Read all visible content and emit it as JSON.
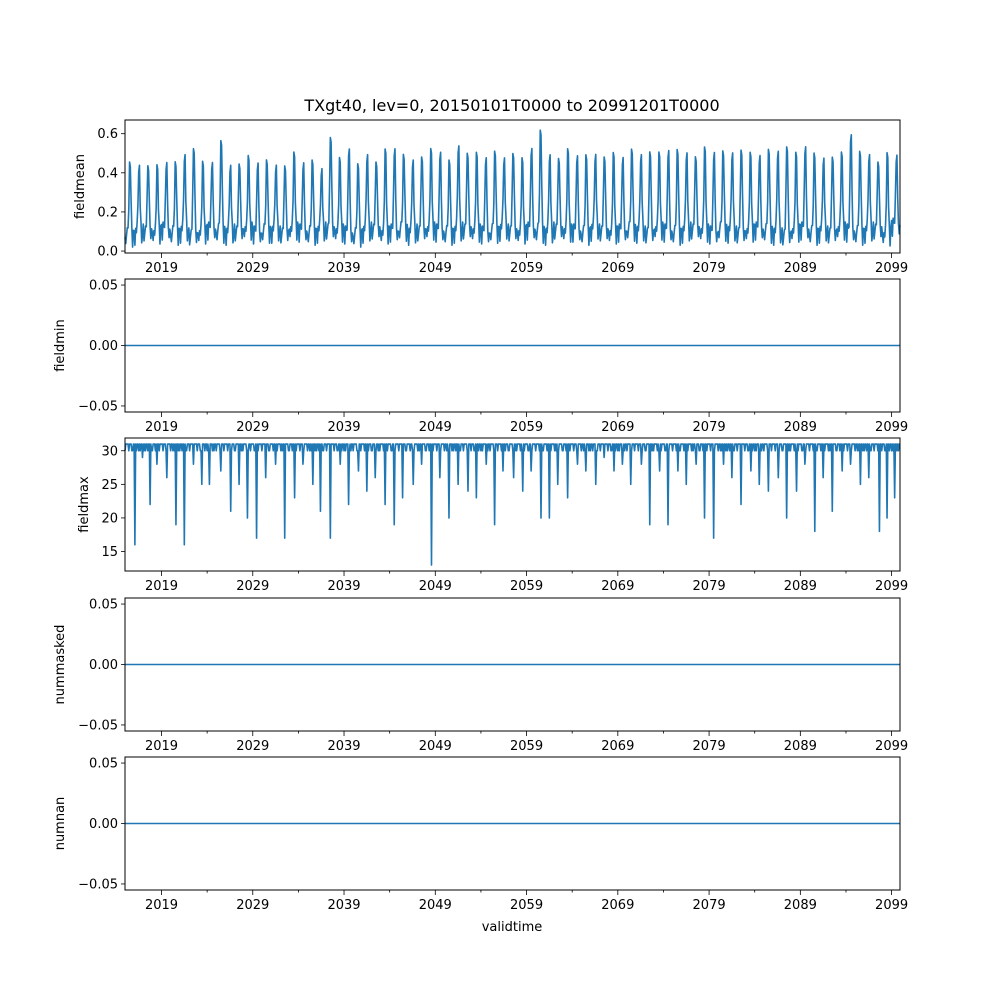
{
  "chart_data": {
    "type": "line",
    "title": "TXgt40, lev=0, 20150101T0000 to 20991201T0000",
    "xlabel": "validtime",
    "series_color": "#1f77b4",
    "x_range": [
      "2015-01-01",
      "2099-12-01"
    ],
    "x_ticks": [
      "2019",
      "2029",
      "2039",
      "2049",
      "2059",
      "2069",
      "2079",
      "2089",
      "2099"
    ],
    "panels": [
      {
        "ylabel": "fieldmean",
        "ylim": [
          -0.01,
          0.67
        ],
        "y_ticks": [
          "0.0",
          "0.2",
          "0.4",
          "0.6"
        ],
        "y_tick_values": [
          0.0,
          0.2,
          0.4,
          0.6
        ],
        "series": {
          "pattern": "seasonal",
          "annual_peaks": [
            0.46,
            0.44,
            0.45,
            0.43,
            0.44,
            0.46,
            0.5,
            0.55,
            0.45,
            0.44,
            0.58,
            0.44,
            0.46,
            0.48,
            0.44,
            0.47,
            0.44,
            0.45,
            0.5,
            0.44,
            0.47,
            0.42,
            0.61,
            0.47,
            0.52,
            0.45,
            0.5,
            0.47,
            0.52,
            0.52,
            0.5,
            0.47,
            0.5,
            0.52,
            0.5,
            0.47,
            0.55,
            0.52,
            0.5,
            0.47,
            0.52,
            0.48,
            0.52,
            0.47,
            0.52,
            0.64,
            0.5,
            0.49,
            0.52,
            0.48,
            0.5,
            0.5,
            0.5,
            0.5,
            0.47,
            0.53,
            0.5,
            0.53,
            0.5,
            0.51,
            0.53,
            0.51,
            0.5,
            0.53,
            0.5,
            0.52,
            0.51,
            0.54,
            0.5,
            0.48,
            0.53,
            0.52,
            0.56,
            0.5,
            0.53,
            0.51,
            0.48,
            0.5,
            0.5,
            0.6,
            0.52,
            0.5,
            0.47,
            0.5,
            0.48
          ],
          "annual_lows": [
            0.02,
            0.03,
            0.04,
            0.03,
            0.05,
            0.03,
            0.04,
            0.02,
            0.03,
            0.05,
            0.04,
            0.03,
            0.04,
            0.05,
            0.03,
            0.04,
            0.04,
            0.03,
            0.05,
            0.04,
            0.03,
            0.04,
            0.05,
            0.04,
            0.03,
            0.02,
            0.04,
            0.05,
            0.03,
            0.04,
            0.05,
            0.03,
            0.04,
            0.05,
            0.04,
            0.03,
            0.04,
            0.05,
            0.04,
            0.03,
            0.04,
            0.05,
            0.04,
            0.03,
            0.05,
            0.04,
            0.03,
            0.05,
            0.04,
            0.04,
            0.03,
            0.05,
            0.04,
            0.03,
            0.04,
            0.05,
            0.04,
            0.03,
            0.05,
            0.04,
            0.03,
            0.04,
            0.05,
            0.04,
            0.03,
            0.05,
            0.04,
            0.03,
            0.04,
            0.05,
            0.04,
            0.03,
            0.02,
            0.04,
            0.05,
            0.03,
            0.04,
            0.03,
            0.05,
            0.04,
            0.03,
            0.04,
            0.05,
            0.02,
            0.07
          ]
        }
      },
      {
        "ylabel": "fieldmin",
        "ylim": [
          -0.055,
          0.055
        ],
        "y_ticks": [
          "−0.05",
          "0.00",
          "0.05"
        ],
        "y_tick_values": [
          -0.05,
          0.0,
          0.05
        ],
        "series": {
          "pattern": "constant",
          "value": 0.0
        }
      },
      {
        "ylabel": "fieldmax",
        "ylim": [
          12.1,
          31.9
        ],
        "y_ticks": [
          "15",
          "20",
          "25",
          "30"
        ],
        "y_tick_values": [
          15,
          20,
          25,
          30
        ],
        "series": {
          "pattern": "spiky",
          "base": 31,
          "alt": 30,
          "dips": [
            [
              2016.1,
              16
            ],
            [
              2016.9,
              29
            ],
            [
              2017.8,
              22
            ],
            [
              2018.5,
              28
            ],
            [
              2019.6,
              26
            ],
            [
              2020.6,
              19
            ],
            [
              2021.5,
              16
            ],
            [
              2022.5,
              28
            ],
            [
              2023.4,
              25
            ],
            [
              2024.3,
              25
            ],
            [
              2025.5,
              27
            ],
            [
              2026.6,
              21
            ],
            [
              2027.5,
              25
            ],
            [
              2028.4,
              20
            ],
            [
              2029.4,
              17
            ],
            [
              2030.4,
              26
            ],
            [
              2031.5,
              28
            ],
            [
              2032.5,
              17
            ],
            [
              2033.6,
              23
            ],
            [
              2034.5,
              28
            ],
            [
              2035.6,
              25
            ],
            [
              2036.4,
              21
            ],
            [
              2037.5,
              17
            ],
            [
              2038.6,
              28
            ],
            [
              2039.5,
              22
            ],
            [
              2040.6,
              27
            ],
            [
              2041.5,
              24
            ],
            [
              2042.4,
              26
            ],
            [
              2043.5,
              22
            ],
            [
              2044.5,
              19
            ],
            [
              2045.4,
              23
            ],
            [
              2046.6,
              25
            ],
            [
              2047.5,
              28
            ],
            [
              2048.6,
              13
            ],
            [
              2049.5,
              26
            ],
            [
              2050.5,
              20
            ],
            [
              2051.5,
              25
            ],
            [
              2052.6,
              24
            ],
            [
              2053.5,
              23
            ],
            [
              2054.6,
              28
            ],
            [
              2055.5,
              19
            ],
            [
              2056.4,
              27
            ],
            [
              2057.6,
              26
            ],
            [
              2058.6,
              24
            ],
            [
              2059.5,
              27
            ],
            [
              2060.6,
              20
            ],
            [
              2061.5,
              20
            ],
            [
              2062.4,
              25
            ],
            [
              2063.5,
              23
            ],
            [
              2064.6,
              28
            ],
            [
              2065.5,
              27
            ],
            [
              2066.6,
              25
            ],
            [
              2067.5,
              29
            ],
            [
              2068.6,
              27
            ],
            [
              2069.5,
              28
            ],
            [
              2070.4,
              25
            ],
            [
              2071.6,
              28
            ],
            [
              2072.5,
              19
            ],
            [
              2073.6,
              27
            ],
            [
              2074.5,
              19
            ],
            [
              2075.6,
              27
            ],
            [
              2076.5,
              25
            ],
            [
              2077.6,
              28
            ],
            [
              2078.5,
              20
            ],
            [
              2079.5,
              17
            ],
            [
              2080.6,
              28
            ],
            [
              2081.5,
              26
            ],
            [
              2082.5,
              22
            ],
            [
              2083.6,
              27
            ],
            [
              2084.5,
              25
            ],
            [
              2085.5,
              24
            ],
            [
              2086.6,
              26
            ],
            [
              2087.5,
              20
            ],
            [
              2088.6,
              24
            ],
            [
              2089.5,
              28
            ],
            [
              2090.6,
              18
            ],
            [
              2091.5,
              26
            ],
            [
              2092.5,
              21
            ],
            [
              2093.6,
              27
            ],
            [
              2094.5,
              28
            ],
            [
              2095.6,
              25
            ],
            [
              2096.5,
              26
            ],
            [
              2097.7,
              18
            ],
            [
              2098.5,
              20
            ],
            [
              2099.3,
              23
            ]
          ]
        }
      },
      {
        "ylabel": "nummasked",
        "ylim": [
          -0.055,
          0.055
        ],
        "y_ticks": [
          "−0.05",
          "0.00",
          "0.05"
        ],
        "y_tick_values": [
          -0.05,
          0.0,
          0.05
        ],
        "series": {
          "pattern": "constant",
          "value": 0.0
        }
      },
      {
        "ylabel": "numnan",
        "ylim": [
          -0.055,
          0.055
        ],
        "y_ticks": [
          "−0.05",
          "0.00",
          "0.05"
        ],
        "y_tick_values": [
          -0.05,
          0.0,
          0.05
        ],
        "series": {
          "pattern": "constant",
          "value": 0.0
        }
      }
    ]
  }
}
